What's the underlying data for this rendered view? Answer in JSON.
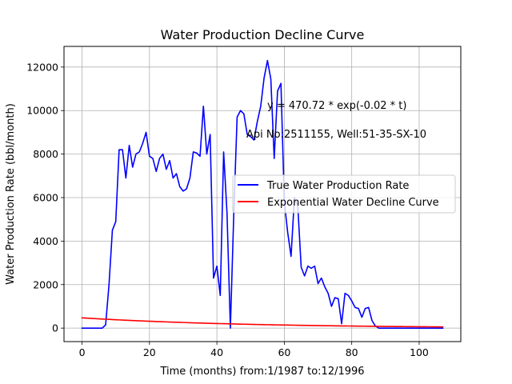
{
  "chart_data": {
    "type": "line",
    "title": "Water Production Decline Curve",
    "xlabel": "Time (months) from:1/1987 to:12/1996",
    "ylabel": "Water Production Rate (bbl/month)",
    "xlim": [
      -5.35,
      112.35
    ],
    "ylim": [
      -620,
      12950
    ],
    "xticks": [
      0,
      20,
      40,
      60,
      80,
      100
    ],
    "yticks": [
      0,
      2000,
      4000,
      6000,
      8000,
      10000,
      12000
    ],
    "grid": true,
    "legend": "center-right",
    "annotations": [
      "y = 470.72 * exp(-0.02 * t)",
      "Api No:2511155, Well:51-35-SX-10"
    ],
    "series": [
      {
        "name": "True Water Production Rate",
        "color": "#0000ff",
        "x": [
          0,
          1,
          2,
          3,
          4,
          5,
          6,
          7,
          8,
          9,
          10,
          11,
          12,
          13,
          14,
          15,
          16,
          17,
          18,
          19,
          20,
          21,
          22,
          23,
          24,
          25,
          26,
          27,
          28,
          29,
          30,
          31,
          32,
          33,
          34,
          35,
          36,
          37,
          38,
          39,
          40,
          41,
          42,
          43,
          44,
          45,
          46,
          47,
          48,
          49,
          50,
          51,
          52,
          53,
          54,
          55,
          56,
          57,
          58,
          59,
          60,
          61,
          62,
          63,
          64,
          65,
          66,
          67,
          68,
          69,
          70,
          71,
          72,
          73,
          74,
          75,
          76,
          77,
          78,
          79,
          80,
          81,
          82,
          83,
          84,
          85,
          86,
          87,
          88,
          89,
          90,
          91,
          92,
          93,
          94,
          95,
          96,
          97,
          98,
          99,
          100,
          101,
          102,
          103,
          104,
          105,
          106,
          107
        ],
        "y": [
          0,
          0,
          0,
          0,
          0,
          0,
          0,
          150,
          2000,
          4500,
          4900,
          8200,
          8200,
          6900,
          8400,
          7400,
          8000,
          8100,
          8500,
          9000,
          7900,
          7800,
          7200,
          7800,
          8000,
          7300,
          7700,
          6900,
          7100,
          6500,
          6300,
          6400,
          6900,
          8100,
          8050,
          7900,
          10200,
          8000,
          8900,
          2300,
          2850,
          1500,
          8100,
          5300,
          0,
          5200,
          9700,
          10000,
          9850,
          8900,
          8800,
          8650,
          9500,
          10200,
          11500,
          12300,
          11450,
          7800,
          10900,
          11250,
          5800,
          4400,
          3300,
          6000,
          5600,
          2800,
          2400,
          2850,
          2750,
          2850,
          2050,
          2300,
          1900,
          1600,
          1000,
          1400,
          1350,
          200,
          1600,
          1500,
          1250,
          950,
          900,
          500,
          900,
          950,
          350,
          100,
          0,
          0,
          0,
          0,
          0,
          0,
          0,
          0,
          0,
          0,
          0,
          0,
          0,
          0,
          0,
          0,
          0,
          0,
          0,
          0
        ]
      },
      {
        "name": "Exponential Water Decline Curve",
        "color": "#ff0000",
        "model": {
          "a": 470.72,
          "b": -0.02
        },
        "x": [
          0,
          10,
          20,
          30,
          40,
          50,
          60,
          70,
          80,
          90,
          100,
          107
        ],
        "y": [
          470.72,
          385.4,
          315.5,
          258.3,
          211.5,
          173.1,
          141.7,
          116.0,
          95.0,
          77.8,
          63.7,
          55.3
        ]
      }
    ]
  }
}
